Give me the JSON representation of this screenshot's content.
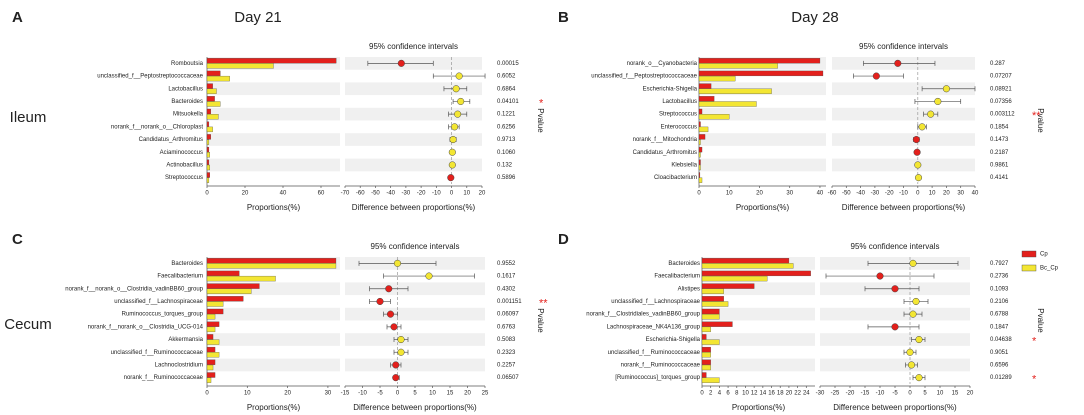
{
  "column_titles": [
    "Day 21",
    "Day 28"
  ],
  "row_titles": [
    "Ileum",
    "Cecum"
  ],
  "chart_data": [
    {
      "type": "extended_error_bar",
      "panel": "A",
      "ci_title": "95% confidence intervals",
      "xlabel": "Proportions(%)",
      "x2label": "Difference between proportions(%)",
      "pvalue_label": "Pvalue",
      "categories": [
        "Romboutsia",
        "unclassified_f__Peptostreptococcaceae",
        "Lactobacillus",
        "Bacteroides",
        "Mitsuokella",
        "norank_f__norank_o__Chloroplast",
        "Candidatus_Arthromitus",
        "Aciaminococcus",
        "Actinobacillus",
        "Streptococcus"
      ],
      "series": [
        {
          "name": "Cp",
          "color": "#e3201c",
          "values": [
            68,
            7,
            3,
            4,
            2,
            1,
            2,
            1,
            1,
            1.5
          ]
        },
        {
          "name": "Bc_Cp",
          "color": "#f3e633",
          "values": [
            35,
            12,
            5,
            7,
            6,
            3,
            1,
            1.5,
            1.5,
            1
          ]
        }
      ],
      "difference": [
        -33,
        5,
        3,
        6,
        4,
        2,
        1,
        0.5,
        0.5,
        -0.5
      ],
      "ci_low": [
        -55,
        -12,
        -5,
        1,
        -2,
        -2,
        -1,
        -0.5,
        -0.5,
        -1.5
      ],
      "ci_high": [
        -12,
        22,
        10,
        12,
        10,
        5,
        3,
        1.5,
        1.5,
        0.5
      ],
      "pvalues": [
        "0.00015",
        "0.6052",
        "0.6864",
        "0.04101",
        "0.1221",
        "0.6256",
        "0.9713",
        "0.1060",
        "0.132",
        "0.5896"
      ],
      "significance": [
        null,
        null,
        null,
        "*",
        null,
        null,
        null,
        null,
        null,
        null
      ],
      "xlim": [
        0,
        70
      ],
      "xticks": [
        0,
        20,
        40,
        60
      ],
      "x2lim": [
        -70,
        20
      ],
      "x2ticks": [
        -70,
        -60,
        -50,
        -40,
        -30,
        -20,
        -10,
        0,
        10,
        20
      ]
    },
    {
      "type": "extended_error_bar",
      "panel": "B",
      "ci_title": "95% confidence intervals",
      "xlabel": "Proportions(%)",
      "x2label": "Difference between proportions(%)",
      "pvalue_label": "Pvalue",
      "categories": [
        "norank_o__Cyanobacteria",
        "unclassified_f__Peptostreptococcaceae",
        "Escherichia-Shigella",
        "Lactobacillus",
        "Streptococcus",
        "Enterococcus",
        "norank_f__Mitochondria",
        "Candidatus_Arthromitus",
        "Klebsiella",
        "Cloacibacterium"
      ],
      "series": [
        {
          "name": "Cp",
          "color": "#e3201c",
          "values": [
            40,
            41,
            4,
            5,
            1,
            0.5,
            2,
            1,
            0.5,
            0.3
          ]
        },
        {
          "name": "Bc_Cp",
          "color": "#f3e633",
          "values": [
            26,
            12,
            24,
            19,
            10,
            3,
            0.5,
            0.5,
            0.5,
            1
          ]
        }
      ],
      "difference": [
        -14,
        -29,
        20,
        14,
        9,
        3,
        -1,
        -0.5,
        0,
        0.5
      ],
      "ci_low": [
        -38,
        -45,
        3,
        -2,
        4,
        0,
        -3,
        -1.5,
        -1,
        -0.5
      ],
      "ci_high": [
        12,
        -10,
        40,
        30,
        14,
        6,
        1,
        0.5,
        1,
        1.5
      ],
      "pvalues": [
        "0.287",
        "0.07207",
        "0.08921",
        "0.07356",
        "0.003112",
        "0.1854",
        "0.1473",
        "0.2187",
        "0.9861",
        "0.4141"
      ],
      "significance": [
        null,
        null,
        null,
        null,
        "**",
        null,
        null,
        null,
        null,
        null
      ],
      "xlim": [
        0,
        42
      ],
      "xticks": [
        0,
        10,
        20,
        30,
        40
      ],
      "x2lim": [
        -60,
        40
      ],
      "x2ticks": [
        -60,
        -50,
        -40,
        -30,
        -20,
        -10,
        0,
        10,
        20,
        30,
        40
      ]
    },
    {
      "type": "extended_error_bar",
      "panel": "C",
      "ci_title": "95% confidence intervals",
      "xlabel": "Proportions(%)",
      "x2label": "Difference between proportions(%)",
      "pvalue_label": "Pvalue",
      "categories": [
        "Bacteroides",
        "Faecalibacterium",
        "norank_f__norank_o__Clostridia_vadinBB60_group",
        "unclassified_f__Lachnospiraceae",
        "Ruminococcus_torques_group",
        "norank_f__norank_o__Clostridia_UCG-014",
        "Akkermansia",
        "unclassified_f__Ruminococcaceae",
        "Lachnoclostridium",
        "norank_f__Ruminococcaceae"
      ],
      "series": [
        {
          "name": "Cp",
          "color": "#e3201c",
          "values": [
            32,
            8,
            13,
            9,
            4,
            3,
            1.5,
            2,
            2,
            2
          ]
        },
        {
          "name": "Bc_Cp",
          "color": "#f3e633",
          "values": [
            32,
            17,
            11,
            4,
            2,
            2,
            3,
            3,
            1.5,
            1
          ]
        }
      ],
      "difference": [
        0,
        9,
        -2.5,
        -5,
        -2,
        -1,
        1,
        1,
        -0.5,
        -0.5
      ],
      "ci_low": [
        -11,
        -4,
        -8,
        -8,
        -4,
        -3,
        -1,
        -1,
        -2,
        -1
      ],
      "ci_high": [
        11,
        22,
        3,
        -2,
        0,
        1,
        3,
        3,
        1,
        0.5
      ],
      "pvalues": [
        "0.9552",
        "0.1617",
        "0.4302",
        "0.001151",
        "0.06097",
        "0.6763",
        "0.5083",
        "0.2323",
        "0.2257",
        "0.06507"
      ],
      "significance": [
        null,
        null,
        null,
        "**",
        null,
        null,
        null,
        null,
        null,
        null
      ],
      "xlim": [
        0,
        33
      ],
      "xticks": [
        0,
        10,
        20,
        30
      ],
      "x2lim": [
        -15,
        25
      ],
      "x2ticks": [
        -15,
        -10,
        -5,
        0,
        5,
        10,
        15,
        20,
        25
      ]
    },
    {
      "type": "extended_error_bar",
      "panel": "D",
      "ci_title": "95% confidence intervals",
      "xlabel": "Proportions(%)",
      "x2label": "Difference between proportions(%)",
      "pvalue_label": "Pvalue",
      "categories": [
        "Bacteroides",
        "Faecalibacterium",
        "Alistipes",
        "unclassified_f__Lachnospiraceae",
        "norank_f__Clostridiales_vadinBB60_group",
        "Lachnospiraceae_NK4A136_group",
        "Escherichia-Shigella",
        "unclassified_f__Ruminococcaceae",
        "norank_f__Ruminococcaceae",
        "[Ruminococcus]_torques_group"
      ],
      "series": [
        {
          "name": "Cp",
          "color": "#e3201c",
          "values": [
            20,
            25,
            12,
            5,
            4,
            7,
            1,
            2,
            2,
            1
          ]
        },
        {
          "name": "Bc_Cp",
          "color": "#f3e633",
          "values": [
            21,
            15,
            5,
            6,
            4,
            2,
            4,
            2,
            2,
            4
          ]
        }
      ],
      "difference": [
        1,
        -10,
        -5,
        2,
        1,
        -5,
        3,
        0,
        0.5,
        3
      ],
      "ci_low": [
        -14,
        -28,
        -15,
        -2,
        -2,
        -14,
        0.5,
        -2,
        -1.5,
        1
      ],
      "ci_high": [
        16,
        8,
        3,
        6,
        4,
        3,
        5,
        2,
        2.5,
        5
      ],
      "pvalues": [
        "0.7927",
        "0.2736",
        "0.1093",
        "0.2106",
        "0.6788",
        "0.1847",
        "0.04638",
        "0.9051",
        "0.6596",
        "0.01289"
      ],
      "significance": [
        null,
        null,
        null,
        null,
        null,
        null,
        "*",
        null,
        null,
        "*"
      ],
      "xlim": [
        0,
        26
      ],
      "xticks": [
        0,
        2,
        4,
        6,
        8,
        10,
        12,
        14,
        16,
        18,
        20,
        22,
        24
      ],
      "x2lim": [
        -30,
        20
      ],
      "x2ticks": [
        -30,
        -25,
        -20,
        -15,
        -10,
        -5,
        0,
        5,
        10,
        15,
        20
      ]
    }
  ]
}
